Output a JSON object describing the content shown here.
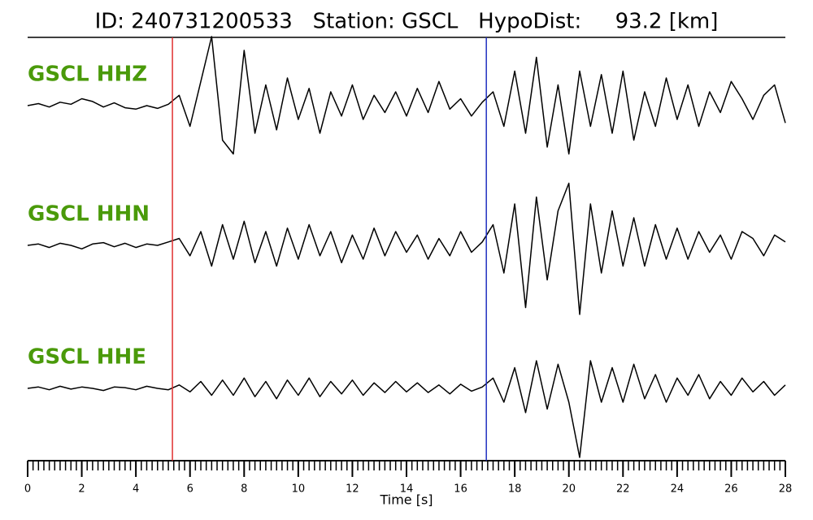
{
  "chart_data": {
    "type": "waveform",
    "title": "ID: 240731200533   Station: GSCL   HypoDist:     93.2 [km]",
    "xlabel": "Time [s]",
    "xlim": [
      0,
      28
    ],
    "ylim": [
      -1,
      1
    ],
    "xticks": [
      0,
      2,
      4,
      6,
      8,
      10,
      12,
      14,
      16,
      18,
      20,
      22,
      24,
      26,
      28
    ],
    "minor_xticks": [
      0,
      0.2,
      0.4,
      0.6,
      0.8,
      1,
      1.2,
      1.4,
      1.6,
      1.8,
      2,
      2.2,
      2.4,
      2.6,
      2.8,
      3,
      3.2,
      3.4,
      3.6,
      3.8,
      4,
      4.2,
      4.4,
      4.6,
      4.8,
      5,
      5.2,
      5.4,
      5.6,
      5.8,
      6,
      6.2,
      6.4,
      6.6,
      6.8,
      7,
      7.2,
      7.4,
      7.6,
      7.8,
      8,
      8.2,
      8.4,
      8.6,
      8.8,
      9,
      9.2,
      9.4,
      9.6,
      9.8,
      10,
      10.2,
      10.4,
      10.6,
      10.8,
      11,
      11.2,
      11.4,
      11.6,
      11.8,
      12,
      12.2,
      12.4,
      12.6,
      12.8,
      13,
      13.2,
      13.4,
      13.6,
      13.8,
      14,
      14.2,
      14.4,
      14.6,
      14.8,
      15,
      15.2,
      15.4,
      15.6,
      15.8,
      16,
      16.2,
      16.4,
      16.6,
      16.8,
      17,
      17.2,
      17.4,
      17.6,
      17.8,
      18,
      18.2,
      18.4,
      18.6,
      18.8,
      19,
      19.2,
      19.4,
      19.6,
      19.8,
      20,
      20.2,
      20.4,
      20.6,
      20.8,
      21,
      21.2,
      21.4,
      21.6,
      21.8,
      22,
      22.2,
      22.4,
      22.6,
      22.8,
      23,
      23.2,
      23.4,
      23.6,
      23.8,
      24,
      24.2,
      24.4,
      24.6,
      24.8,
      25,
      25.2,
      25.4,
      25.6,
      25.8,
      26,
      26.2,
      26.4,
      26.6,
      26.8,
      27,
      27.2,
      27.4,
      27.6,
      27.8,
      28
    ],
    "x": [
      0,
      0.4,
      0.8,
      1.2,
      1.6,
      2,
      2.4,
      2.8,
      3.2,
      3.6,
      4,
      4.4,
      4.8,
      5.2,
      5.6,
      6,
      6.4,
      6.8,
      7.2,
      7.6,
      8,
      8.4,
      8.8,
      9.2,
      9.6,
      10,
      10.4,
      10.8,
      11.2,
      11.6,
      12,
      12.4,
      12.8,
      13.2,
      13.6,
      14,
      14.4,
      14.8,
      15.2,
      15.6,
      16,
      16.4,
      16.8,
      17.2,
      17.6,
      18,
      18.4,
      18.8,
      19.2,
      19.6,
      20,
      20.4,
      20.8,
      21.2,
      21.6,
      22,
      22.4,
      22.8,
      23.2,
      23.6,
      24,
      24.4,
      24.8,
      25.2,
      25.6,
      26,
      26.4,
      26.8,
      27.2,
      27.6,
      28
    ],
    "label_color": "#4a9a0a",
    "markers": [
      {
        "x": 5.35,
        "color": "#e03030"
      },
      {
        "x": 16.95,
        "color": "#2030c0"
      }
    ],
    "series": [
      {
        "name": "GSCL HHZ",
        "color": "#000000",
        "values": [
          0,
          0.03,
          -0.02,
          0.05,
          0.02,
          0.1,
          0.06,
          -0.02,
          0.04,
          -0.03,
          -0.05,
          0,
          -0.04,
          0.02,
          0.15,
          -0.3,
          0.35,
          1.0,
          -0.5,
          -0.7,
          0.8,
          -0.4,
          0.3,
          -0.35,
          0.4,
          -0.2,
          0.25,
          -0.4,
          0.2,
          -0.15,
          0.3,
          -0.2,
          0.15,
          -0.1,
          0.2,
          -0.15,
          0.25,
          -0.1,
          0.35,
          -0.05,
          0.1,
          -0.15,
          0.05,
          0.2,
          -0.3,
          0.5,
          -0.4,
          0.7,
          -0.6,
          0.3,
          -0.7,
          0.5,
          -0.3,
          0.45,
          -0.4,
          0.5,
          -0.5,
          0.2,
          -0.3,
          0.4,
          -0.2,
          0.3,
          -0.3,
          0.2,
          -0.1,
          0.35,
          0.1,
          -0.2,
          0.15,
          0.3,
          -0.25
        ]
      },
      {
        "name": "GSCL HHN",
        "color": "#000000",
        "values": [
          0,
          0.02,
          -0.03,
          0.03,
          0,
          -0.05,
          0.02,
          0.04,
          -0.02,
          0.03,
          -0.03,
          0.02,
          0,
          0.05,
          0.1,
          -0.15,
          0.2,
          -0.3,
          0.3,
          -0.2,
          0.35,
          -0.25,
          0.2,
          -0.3,
          0.25,
          -0.2,
          0.3,
          -0.15,
          0.2,
          -0.25,
          0.15,
          -0.2,
          0.25,
          -0.15,
          0.2,
          -0.1,
          0.15,
          -0.2,
          0.1,
          -0.15,
          0.2,
          -0.1,
          0.05,
          0.3,
          -0.4,
          0.6,
          -0.9,
          0.7,
          -0.5,
          0.5,
          0.9,
          -1.0,
          0.6,
          -0.4,
          0.5,
          -0.3,
          0.4,
          -0.3,
          0.3,
          -0.2,
          0.25,
          -0.2,
          0.2,
          -0.1,
          0.15,
          -0.2,
          0.2,
          0.1,
          -0.15,
          0.15,
          0.05
        ]
      },
      {
        "name": "GSCL HHE",
        "color": "#000000",
        "values": [
          0,
          0.02,
          -0.02,
          0.03,
          -0.01,
          0.02,
          0,
          -0.03,
          0.02,
          0.01,
          -0.02,
          0.03,
          0,
          -0.02,
          0.05,
          -0.05,
          0.1,
          -0.1,
          0.12,
          -0.1,
          0.15,
          -0.12,
          0.1,
          -0.15,
          0.12,
          -0.1,
          0.15,
          -0.12,
          0.1,
          -0.08,
          0.12,
          -0.1,
          0.08,
          -0.06,
          0.1,
          -0.05,
          0.08,
          -0.06,
          0.05,
          -0.08,
          0.06,
          -0.04,
          0.02,
          0.15,
          -0.2,
          0.3,
          -0.35,
          0.4,
          -0.3,
          0.35,
          -0.2,
          -1.0,
          0.4,
          -0.2,
          0.3,
          -0.2,
          0.35,
          -0.15,
          0.2,
          -0.2,
          0.15,
          -0.1,
          0.2,
          -0.15,
          0.1,
          -0.1,
          0.15,
          -0.05,
          0.1,
          -0.1,
          0.05
        ]
      }
    ]
  }
}
